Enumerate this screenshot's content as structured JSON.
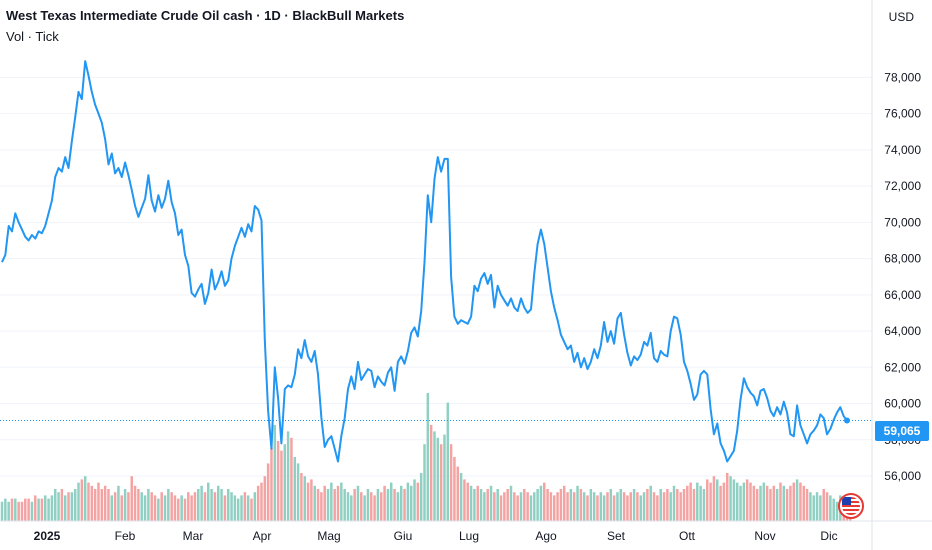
{
  "header": {
    "title": "West Texas Intermediate Crude Oil cash · 1D · BlackBull Markets",
    "subtitle": "Vol · Tick"
  },
  "price_axis": {
    "currency": "USD",
    "last_price_label": "59,065"
  },
  "colors": {
    "line": "#2196f3",
    "vol_up": "#8fd0c3",
    "vol_down": "#f4a3a3",
    "grid": "#f0f3fa"
  },
  "icons": {
    "flag": "us-flag-icon"
  },
  "chart_data": {
    "type": "line",
    "title": "West Texas Intermediate Crude Oil cash · 1D · BlackBull Markets",
    "xlabel": "",
    "ylabel": "",
    "x_ticks": [
      "2025",
      "Feb",
      "Mar",
      "Apr",
      "Mag",
      "Giu",
      "Lug",
      "Ago",
      "Set",
      "Ott",
      "Nov",
      "Dic"
    ],
    "y_ticks": [
      "56,000",
      "58,000",
      "60,000",
      "62,000",
      "64,000",
      "66,000",
      "68,000",
      "70,000",
      "72,000",
      "74,000",
      "76,000",
      "78,000"
    ],
    "ylim": [
      54.5,
      79.5
    ],
    "last_value": 59.065,
    "grid": true,
    "series": [
      {
        "values": [
          67.8,
          68.2,
          69.8,
          69.5,
          70.5,
          70.0,
          69.6,
          69.2,
          69.0,
          69.3,
          69.1,
          69.5,
          69.4,
          69.8,
          70.5,
          71.2,
          72.5,
          73.0,
          72.8,
          73.6,
          73.0,
          74.5,
          75.8,
          77.2,
          76.8,
          78.9,
          78.1,
          77.2,
          76.5,
          76.0,
          75.5,
          74.6,
          73.2,
          73.8,
          72.7,
          73.0,
          72.5,
          73.3,
          72.6,
          71.8,
          70.9,
          70.3,
          70.8,
          71.3,
          72.6,
          71.2,
          70.6,
          71.5,
          70.8,
          71.3,
          72.3,
          71.1,
          70.5,
          69.3,
          69.6,
          68.2,
          67.6,
          66.1,
          65.9,
          66.3,
          66.6,
          65.5,
          66.1,
          67.4,
          66.3,
          66.7,
          67.3,
          66.5,
          66.8,
          68.0,
          68.7,
          69.2,
          69.7,
          69.2,
          69.9,
          69.5,
          70.9,
          70.7,
          70.1,
          63.5,
          59.6,
          57.5,
          62.0,
          60.3,
          57.8,
          60.8,
          61.0,
          60.9,
          61.6,
          63.0,
          62.5,
          63.5,
          62.6,
          62.3,
          62.9,
          61.6,
          59.2,
          57.6,
          58.0,
          58.2,
          57.5,
          56.8,
          58.2,
          59.2,
          60.8,
          61.5,
          60.8,
          62.3,
          61.3,
          61.6,
          61.9,
          61.8,
          60.9,
          61.5,
          61.2,
          61.0,
          61.7,
          62.0,
          60.7,
          62.3,
          62.6,
          62.2,
          62.9,
          63.9,
          64.2,
          63.7,
          65.1,
          67.8,
          71.5,
          70.0,
          72.4,
          73.6,
          72.8,
          73.5,
          73.5,
          67.0,
          64.8,
          64.4,
          64.6,
          64.5,
          64.4,
          64.8,
          66.5,
          66.2,
          66.9,
          67.2,
          66.6,
          67.1,
          65.3,
          66.5,
          66.0,
          65.7,
          65.4,
          65.8,
          65.3,
          65.1,
          65.8,
          65.3,
          65.0,
          65.2,
          67.2,
          68.8,
          69.6,
          68.8,
          67.5,
          66.2,
          65.3,
          64.6,
          63.8,
          63.4,
          63.0,
          63.2,
          62.3,
          62.8,
          62.0,
          62.5,
          61.9,
          62.3,
          63.0,
          62.5,
          63.2,
          64.5,
          63.4,
          64.0,
          63.3,
          64.7,
          65.0,
          63.8,
          62.8,
          62.1,
          62.6,
          62.4,
          62.7,
          63.4,
          63.2,
          63.9,
          62.5,
          62.3,
          62.9,
          62.7,
          62.6,
          64.0,
          64.8,
          64.7,
          63.8,
          62.3,
          61.8,
          61.1,
          60.2,
          60.5,
          61.6,
          61.8,
          61.6,
          59.7,
          58.3,
          58.9,
          57.8,
          57.4,
          56.8,
          57.1,
          57.4,
          58.5,
          60.2,
          61.4,
          60.9,
          60.6,
          60.4,
          59.9,
          60.7,
          60.8,
          60.3,
          59.6,
          59.3,
          59.8,
          59.4,
          60.1,
          59.5,
          58.3,
          58.2,
          59.9,
          58.8,
          58.3,
          57.8,
          58.3,
          58.5,
          58.8,
          59.4,
          59.2,
          58.3,
          58.6,
          59.1,
          59.5,
          59.8,
          59.3,
          59.065
        ]
      },
      {
        "name": "Vol",
        "values": [
          6,
          7,
          6,
          7,
          7,
          6,
          6,
          7,
          7,
          6,
          8,
          7,
          7,
          8,
          7,
          8,
          10,
          9,
          10,
          8,
          9,
          9,
          10,
          12,
          13,
          14,
          12,
          11,
          10,
          12,
          10,
          11,
          10,
          8,
          9,
          11,
          8,
          10,
          9,
          14,
          11,
          10,
          9,
          8,
          10,
          9,
          8,
          7,
          9,
          8,
          10,
          9,
          8,
          7,
          8,
          7,
          9,
          8,
          9,
          10,
          11,
          9,
          12,
          10,
          9,
          11,
          10,
          8,
          10,
          9,
          8,
          7,
          8,
          9,
          8,
          7,
          9,
          11,
          12,
          14,
          18,
          23,
          30,
          25,
          22,
          24,
          28,
          26,
          20,
          18,
          15,
          14,
          12,
          13,
          11,
          10,
          9,
          11,
          10,
          12,
          10,
          11,
          12,
          10,
          9,
          8,
          10,
          11,
          9,
          8,
          10,
          9,
          8,
          10,
          9,
          11,
          10,
          12,
          10,
          9,
          11,
          10,
          12,
          11,
          13,
          12,
          15,
          24,
          40,
          30,
          28,
          26,
          24,
          27,
          37,
          24,
          20,
          17,
          15,
          13,
          12,
          11,
          10,
          11,
          10,
          9,
          10,
          11,
          9,
          10,
          8,
          9,
          10,
          11,
          9,
          8,
          9,
          10,
          9,
          8,
          9,
          10,
          11,
          12,
          10,
          9,
          8,
          9,
          10,
          11,
          9,
          10,
          9,
          11,
          10,
          9,
          8,
          10,
          9,
          8,
          9,
          8,
          9,
          10,
          8,
          9,
          10,
          9,
          8,
          9,
          10,
          9,
          8,
          9,
          10,
          11,
          9,
          8,
          10,
          9,
          10,
          9,
          11,
          10,
          9,
          10,
          11,
          12,
          10,
          12,
          11,
          10,
          13,
          12,
          14,
          13,
          11,
          12,
          15,
          14,
          13,
          12,
          11,
          12,
          13,
          12,
          11,
          10,
          11,
          12,
          11,
          10,
          11,
          10,
          12,
          11,
          10,
          11,
          12,
          13,
          12,
          11,
          10,
          9,
          8,
          9,
          8,
          10,
          9,
          8,
          7,
          6,
          8,
          7,
          5,
          6
        ]
      }
    ]
  }
}
